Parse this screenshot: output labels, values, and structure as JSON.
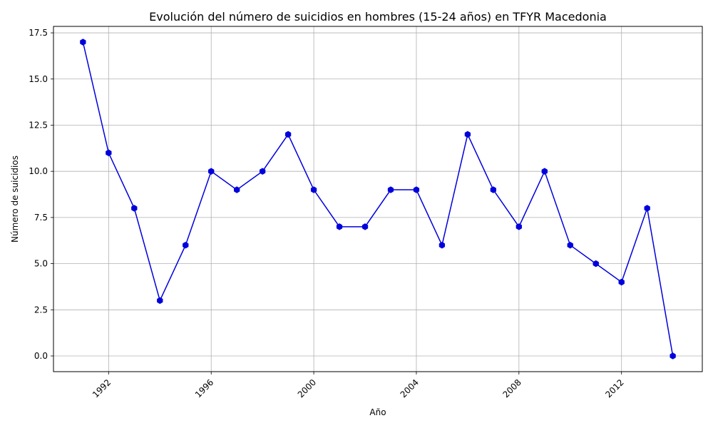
{
  "chart_data": {
    "type": "line",
    "title": "Evolución del número de suicidios en hombres (15-24 años) en TFYR Macedonia",
    "xlabel": "Año",
    "ylabel": "Número de suicidios",
    "x": [
      1991,
      1992,
      1993,
      1994,
      1995,
      1996,
      1997,
      1998,
      1999,
      2000,
      2001,
      2002,
      2003,
      2004,
      2005,
      2006,
      2007,
      2008,
      2009,
      2010,
      2011,
      2012,
      2013,
      2014
    ],
    "series": [
      {
        "values": [
          17,
          11,
          8,
          3,
          6,
          10,
          9,
          10,
          12,
          9,
          7,
          7,
          9,
          9,
          6,
          12,
          9,
          7,
          10,
          6,
          5,
          4,
          8,
          0
        ],
        "color": "#0000dd",
        "marker": "hexagon"
      }
    ],
    "xticks": [
      "1992",
      "1996",
      "2000",
      "2004",
      "2008",
      "2012"
    ],
    "yticks": [
      "0.0",
      "2.5",
      "5.0",
      "7.5",
      "10.0",
      "12.5",
      "15.0",
      "17.5"
    ],
    "xlim": [
      1889.85,
      2015.15
    ],
    "ylim": [
      -0.85,
      17.85
    ],
    "grid": true,
    "xtick_rotation": 45
  }
}
